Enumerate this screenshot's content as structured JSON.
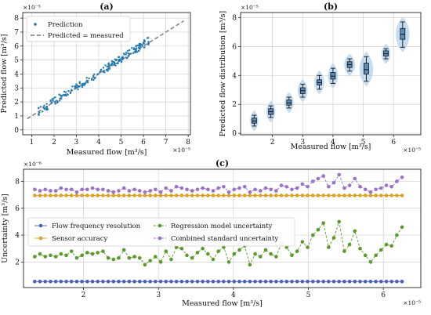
{
  "chart_data": [
    {
      "id": "a",
      "type": "scatter",
      "title": "(a)",
      "xlabel": "Measured flow [m³/s]",
      "ylabel": "Predicted flow [m³/s]",
      "x_exponent": "×10⁻⁵",
      "y_exponent": "×10⁻⁵",
      "xlim": [
        0.6,
        8.1
      ],
      "ylim": [
        -0.35,
        8.4
      ],
      "xticks": [
        "1",
        "2",
        "3",
        "4",
        "5",
        "6",
        "7",
        "8"
      ],
      "xtick_values": [
        1,
        2,
        3,
        4,
        5,
        6,
        7,
        8
      ],
      "yticks": [
        "0",
        "1",
        "2",
        "3",
        "4",
        "5",
        "6",
        "7",
        "8"
      ],
      "ytick_values": [
        0,
        1,
        2,
        3,
        4,
        5,
        6,
        7,
        8
      ],
      "grid": true,
      "legend_position": "top-left",
      "series": [
        {
          "name": "Prediction",
          "color": "#1f77b4",
          "kind": "points",
          "x_range": [
            1.3,
            6.25
          ],
          "n": 190
        },
        {
          "name": "Predicted = measured",
          "color": "#777777",
          "kind": "dashed-line",
          "x": [
            0.8,
            7.8
          ],
          "y": [
            0.8,
            7.8
          ]
        }
      ]
    },
    {
      "id": "b",
      "type": "violin",
      "title": "(b)",
      "xlabel": "Measured flow [m³/s]",
      "ylabel": "Predicted flow distribution [m³/s]",
      "x_exponent": "×10⁻⁵",
      "y_exponent": "×10⁻⁵",
      "xlim": [
        0.95,
        6.9
      ],
      "ylim": [
        -0.1,
        8.35
      ],
      "xticks": [
        "2",
        "3",
        "4",
        "5",
        "6"
      ],
      "xtick_values": [
        2,
        3,
        4,
        5,
        6
      ],
      "yticks": [
        "0",
        "2",
        "4",
        "6",
        "8"
      ],
      "ytick_values": [
        0,
        2,
        4,
        6,
        8
      ],
      "grid": true,
      "box_color": "#5b8fb9",
      "violin_color": "#b8d6ee",
      "boxes": [
        {
          "x": 1.4,
          "q1": 0.7,
          "median": 0.85,
          "q3": 1.05,
          "low": 0.5,
          "high": 1.25,
          "spread": 0.18
        },
        {
          "x": 1.95,
          "q1": 1.3,
          "median": 1.5,
          "q3": 1.7,
          "low": 1.1,
          "high": 1.9,
          "spread": 0.2
        },
        {
          "x": 2.55,
          "q1": 1.95,
          "median": 2.1,
          "q3": 2.3,
          "low": 1.75,
          "high": 2.5,
          "spread": 0.2
        },
        {
          "x": 3.0,
          "q1": 2.75,
          "median": 2.95,
          "q3": 3.15,
          "low": 2.5,
          "high": 3.4,
          "spread": 0.22
        },
        {
          "x": 3.55,
          "q1": 3.35,
          "median": 3.5,
          "q3": 3.7,
          "low": 3.05,
          "high": 4.0,
          "spread": 0.22
        },
        {
          "x": 4.0,
          "q1": 3.75,
          "median": 3.95,
          "q3": 4.2,
          "low": 3.45,
          "high": 4.5,
          "spread": 0.22
        },
        {
          "x": 4.55,
          "q1": 4.55,
          "median": 4.75,
          "q3": 4.95,
          "low": 4.3,
          "high": 5.15,
          "spread": 0.24
        },
        {
          "x": 5.1,
          "q1": 4.1,
          "median": 4.4,
          "q3": 4.85,
          "low": 3.6,
          "high": 5.3,
          "spread": 0.3
        },
        {
          "x": 5.75,
          "q1": 5.35,
          "median": 5.5,
          "q3": 5.7,
          "low": 5.15,
          "high": 5.85,
          "spread": 0.2
        },
        {
          "x": 6.3,
          "q1": 6.5,
          "median": 6.85,
          "q3": 7.25,
          "low": 5.95,
          "high": 7.7,
          "spread": 0.3
        }
      ]
    },
    {
      "id": "c",
      "type": "line",
      "title": "(c)",
      "xlabel": "Measured flow [m³/s]",
      "ylabel": "Uncertainty [m³/s]",
      "x_exponent": "×10⁻⁵",
      "y_exponent": "×10⁻⁶",
      "xlim": [
        1.2,
        6.5
      ],
      "ylim": [
        0.1,
        8.9
      ],
      "xticks": [
        "2",
        "3",
        "4",
        "5",
        "6"
      ],
      "xtick_values": [
        2,
        3,
        4,
        5,
        6
      ],
      "yticks": [
        "2",
        "4",
        "6",
        "8"
      ],
      "ytick_values": [
        2,
        4,
        6,
        8
      ],
      "grid": true,
      "legend_position": "center-left",
      "x": [
        1.35,
        1.42,
        1.49,
        1.56,
        1.63,
        1.7,
        1.77,
        1.84,
        1.91,
        1.98,
        2.05,
        2.12,
        2.19,
        2.26,
        2.33,
        2.4,
        2.47,
        2.54,
        2.61,
        2.68,
        2.75,
        2.82,
        2.89,
        2.96,
        3.03,
        3.1,
        3.17,
        3.24,
        3.31,
        3.38,
        3.45,
        3.52,
        3.59,
        3.66,
        3.73,
        3.8,
        3.87,
        3.94,
        4.01,
        4.08,
        4.15,
        4.22,
        4.29,
        4.36,
        4.43,
        4.5,
        4.57,
        4.64,
        4.71,
        4.78,
        4.85,
        4.92,
        4.99,
        5.06,
        5.13,
        5.2,
        5.27,
        5.34,
        5.41,
        5.48,
        5.55,
        5.62,
        5.69,
        5.76,
        5.83,
        5.9,
        5.97,
        6.04,
        6.11,
        6.18,
        6.25
      ],
      "series": [
        {
          "name": "Flow frequency resolution",
          "color": "#4a5fbf",
          "values": [
            0.55,
            0.55,
            0.55,
            0.55,
            0.55,
            0.55,
            0.55,
            0.55,
            0.55,
            0.55,
            0.55,
            0.55,
            0.55,
            0.55,
            0.55,
            0.55,
            0.55,
            0.55,
            0.55,
            0.55,
            0.55,
            0.55,
            0.55,
            0.55,
            0.55,
            0.55,
            0.55,
            0.55,
            0.55,
            0.55,
            0.55,
            0.55,
            0.55,
            0.55,
            0.55,
            0.55,
            0.55,
            0.55,
            0.55,
            0.55,
            0.55,
            0.55,
            0.55,
            0.55,
            0.55,
            0.55,
            0.55,
            0.55,
            0.55,
            0.55,
            0.55,
            0.55,
            0.55,
            0.55,
            0.55,
            0.55,
            0.55,
            0.55,
            0.55,
            0.55,
            0.55,
            0.55,
            0.55,
            0.55,
            0.55,
            0.55,
            0.55,
            0.55,
            0.55,
            0.55,
            0.55
          ]
        },
        {
          "name": "Sensor accuracy",
          "color": "#e0a020",
          "values": [
            6.95,
            6.95,
            6.95,
            6.95,
            6.95,
            6.95,
            6.95,
            6.95,
            6.95,
            6.95,
            6.95,
            6.95,
            6.95,
            6.95,
            6.95,
            6.95,
            6.95,
            6.95,
            6.95,
            6.95,
            6.95,
            6.95,
            6.95,
            6.95,
            6.95,
            6.95,
            6.95,
            6.95,
            6.95,
            6.95,
            6.95,
            6.95,
            6.95,
            6.95,
            6.95,
            6.95,
            6.95,
            6.95,
            6.95,
            6.95,
            6.95,
            6.95,
            6.95,
            6.95,
            6.95,
            6.95,
            6.95,
            6.95,
            6.95,
            6.95,
            6.95,
            6.95,
            6.95,
            6.95,
            6.95,
            6.95,
            6.95,
            6.95,
            6.95,
            6.95,
            6.95,
            6.95,
            6.95,
            6.95,
            6.95,
            6.95,
            6.95,
            6.95,
            6.95,
            6.95,
            6.95
          ]
        },
        {
          "name": "Regression model uncertainty",
          "color": "#5a9a2a",
          "values": [
            2.4,
            2.6,
            2.4,
            2.5,
            2.4,
            2.6,
            2.5,
            2.8,
            2.3,
            2.5,
            2.7,
            2.6,
            2.7,
            2.8,
            2.3,
            2.2,
            2.3,
            2.9,
            2.3,
            2.4,
            2.3,
            1.8,
            2.1,
            2.4,
            2.0,
            2.8,
            2.2,
            3.1,
            3.0,
            2.5,
            2.3,
            2.7,
            3.0,
            2.6,
            2.2,
            2.8,
            3.1,
            2.0,
            2.6,
            2.9,
            3.2,
            1.8,
            2.6,
            2.4,
            2.9,
            2.6,
            2.4,
            3.4,
            3.1,
            2.5,
            2.8,
            3.5,
            3.1,
            4.0,
            4.4,
            4.9,
            3.1,
            3.8,
            5.0,
            2.8,
            3.3,
            4.3,
            3.0,
            2.5,
            2.0,
            2.5,
            2.9,
            3.3,
            3.2,
            4.0,
            4.6
          ]
        },
        {
          "name": "Combined standard uncertainty",
          "color": "#9a72c8",
          "values": [
            7.4,
            7.3,
            7.4,
            7.3,
            7.3,
            7.5,
            7.4,
            7.4,
            7.2,
            7.4,
            7.4,
            7.5,
            7.4,
            7.4,
            7.3,
            7.2,
            7.3,
            7.5,
            7.3,
            7.4,
            7.3,
            7.2,
            7.3,
            7.4,
            7.2,
            7.5,
            7.3,
            7.6,
            7.5,
            7.4,
            7.3,
            7.4,
            7.5,
            7.4,
            7.3,
            7.5,
            7.6,
            7.2,
            7.4,
            7.5,
            7.6,
            7.2,
            7.4,
            7.3,
            7.5,
            7.4,
            7.3,
            7.7,
            7.6,
            7.4,
            7.5,
            7.8,
            7.6,
            8.0,
            8.2,
            8.4,
            7.6,
            7.9,
            8.5,
            7.5,
            7.7,
            8.2,
            7.6,
            7.4,
            7.2,
            7.4,
            7.5,
            7.7,
            7.6,
            8.0,
            8.3
          ]
        }
      ]
    }
  ]
}
